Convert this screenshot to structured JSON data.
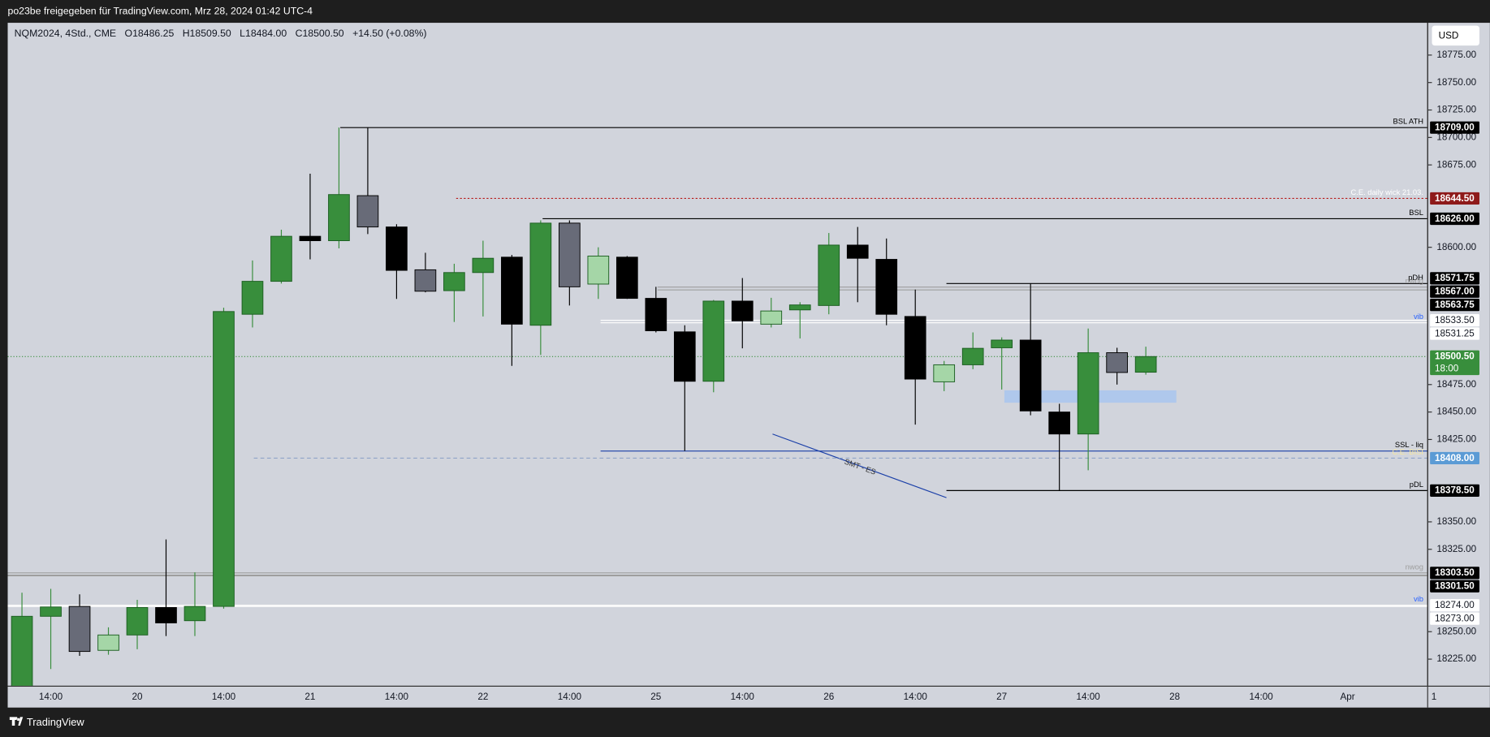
{
  "header": {
    "share_text": "po23be freigegeben für TradingView.com, Mrz 28, 2024 01:42 UTC-4",
    "currency": "USD",
    "brand": "TradingView"
  },
  "chart_data": {
    "type": "candlestick",
    "symbol": "NQM2024, 4Std., CME",
    "ohlc_labels": [
      "O18486.25",
      "H18509.50",
      "L18484.00",
      "C18500.50"
    ],
    "change": "+14.50 (+0.08%)",
    "open": [
      18200,
      18264,
      18273,
      18233,
      18247,
      18272,
      18260,
      18273,
      18539,
      18569,
      18610,
      18606,
      18647,
      18618.5,
      18579.5,
      18560.5,
      18577,
      18591,
      18529,
      18622,
      18566.5,
      18591,
      18553.5,
      18523,
      18478,
      18551,
      18530,
      18543,
      18547,
      18602,
      18589,
      18537,
      18477.5,
      18493,
      18508.5,
      18515.5,
      18450,
      18430,
      18504,
      18486.25
    ],
    "high": [
      18285.5,
      18289,
      18284,
      18254,
      18279,
      18334,
      18304,
      18545,
      18588,
      18616,
      18667,
      18709,
      18709,
      18621,
      18595,
      18585,
      18606,
      18593,
      18624.5,
      18624.5,
      18600,
      18592,
      18564,
      18529,
      18552,
      18572,
      18554,
      18550,
      18613,
      18618.5,
      18608,
      18561.5,
      18496.5,
      18522.5,
      18518,
      18567,
      18457.5,
      18526,
      18508.5,
      18509.5
    ],
    "low": [
      18195,
      18216,
      18228,
      18229,
      18234,
      18246,
      18246,
      18271,
      18527,
      18567,
      18589,
      18599,
      18612,
      18553,
      18559,
      18532,
      18537,
      18492,
      18502,
      18547,
      18553,
      18553,
      18522.5,
      18414.5,
      18468,
      18508,
      18527,
      18517,
      18539,
      18550,
      18529,
      18438.5,
      18469,
      18489,
      18470.5,
      18447,
      18378.5,
      18397,
      18475,
      18484
    ],
    "close": [
      18264,
      18272.5,
      18232,
      18247,
      18272,
      18258,
      18273,
      18541.5,
      18569,
      18610,
      18606,
      18648,
      18618.5,
      18579,
      18560,
      18577,
      18590,
      18530,
      18622,
      18564,
      18592,
      18553.5,
      18524,
      18478,
      18551,
      18533,
      18542,
      18547.5,
      18602,
      18590,
      18539,
      18480,
      18493,
      18508,
      18515.5,
      18451,
      18430,
      18504,
      18486,
      18500.5
    ],
    "colors": [
      "#388e3c",
      "#388e3c",
      "#686b78",
      "#a5d6a7",
      "#388e3c",
      "#000000",
      "#388e3c",
      "#388e3c",
      "#388e3c",
      "#388e3c",
      "#000000",
      "#388e3c",
      "#686b78",
      "#000000",
      "#686b78",
      "#388e3c",
      "#388e3c",
      "#000000",
      "#388e3c",
      "#686b78",
      "#a5d6a7",
      "#000000",
      "#000000",
      "#000000",
      "#388e3c",
      "#000000",
      "#a5d6a7",
      "#388e3c",
      "#388e3c",
      "#000000",
      "#000000",
      "#000000",
      "#a5d6a7",
      "#388e3c",
      "#388e3c",
      "#000000",
      "#000000",
      "#388e3c",
      "#686b78",
      "#388e3c"
    ],
    "ylim": [
      18200.8,
      18804.4
    ],
    "yticks": [
      {
        "value": 18775,
        "label": "18775.00"
      },
      {
        "value": 18750,
        "label": "18750.00"
      },
      {
        "value": 18725,
        "label": "18725.00"
      },
      {
        "value": 18700,
        "label": "18700.00"
      },
      {
        "value": 18675,
        "label": "18675.00"
      },
      {
        "value": 18600,
        "label": "18600.00"
      },
      {
        "value": 18475,
        "label": "18475.00"
      },
      {
        "value": 18450,
        "label": "18450.00"
      },
      {
        "value": 18425,
        "label": "18425.00"
      },
      {
        "value": 18350,
        "label": "18350.00"
      },
      {
        "value": 18325,
        "label": "18325.00"
      },
      {
        "value": 18250,
        "label": "18250.00"
      },
      {
        "value": 18225,
        "label": "18225.00"
      }
    ],
    "xticks": [
      "14:00",
      "20",
      "14:00",
      "21",
      "14:00",
      "22",
      "14:00",
      "25",
      "14:00",
      "26",
      "14:00",
      "27",
      "14:00",
      "28",
      "14:00",
      "Apr",
      "1"
    ],
    "levels": [
      {
        "value": 18709,
        "label": "18709.00",
        "text": "BSL ATH",
        "color": "#000000",
        "box_color": "#000000",
        "text_color": "#000000"
      },
      {
        "value": 18644.5,
        "label": "18644.50",
        "text": "C.E. daily wick 21.03.",
        "color": "#b71c1c",
        "box_color": "#8e1a1a",
        "text_color": "#ffffff"
      },
      {
        "value": 18626,
        "label": "18626.00",
        "text": "BSL",
        "color": "#000000",
        "box_color": "#000000",
        "text_color": "#000000"
      },
      {
        "value": 18571.75,
        "label": "18571.75",
        "box_color": "#000000"
      },
      {
        "value": 18567,
        "label": "18567.00",
        "text": "pDH",
        "color": "#000000",
        "box_color": "#000000",
        "text_color": "#000000"
      },
      {
        "value": 18563.75,
        "label": "18563.75",
        "text": "nwog",
        "color": "#9e9e9e",
        "box_color": "#000000",
        "text_color": "#9e9e9e"
      },
      {
        "value": 18533.5,
        "label": "18533.50",
        "color": "#ffffff",
        "box_color": "#ffffff"
      },
      {
        "value": 18531.25,
        "label": "18531.25",
        "text": "vib",
        "color": "#ffffff",
        "box_color": "#ffffff",
        "text_color": "#2962ff"
      },
      {
        "value": 18500.5,
        "label": "18500.50",
        "sub": "18:00",
        "color": "#388e3c",
        "box_color": "#388e3c"
      },
      {
        "value": 18414.5,
        "text": "SSL - liq",
        "color": "#1a3fa8",
        "text_color": "#000000"
      },
      {
        "value": 18408,
        "label": "18408.00",
        "text": "C.E. BISI",
        "color": "#90a4c8",
        "box_color": "#5b9bd5",
        "text_color": "#f5e6a0"
      },
      {
        "value": 18378.5,
        "label": "18378.50",
        "text": "pDL",
        "color": "#000000",
        "box_color": "#000000",
        "text_color": "#000000"
      },
      {
        "value": 18303.5,
        "label": "18303.50",
        "text": "nwog",
        "color": "#9e9e9e",
        "box_color": "#000000",
        "text_color": "#9e9e9e"
      },
      {
        "value": 18301.5,
        "label": "18301.50",
        "color": "#9e9e9e",
        "box_color": "#000000"
      },
      {
        "value": 18274,
        "label": "18274.00",
        "text": "vib",
        "color": "#ffffff",
        "box_color": "#ffffff",
        "text_color": "#2962ff"
      },
      {
        "value": 18273,
        "label": "18273.00",
        "color": "#ffffff",
        "box_color": "#ffffff"
      }
    ],
    "smt_label": "SMT - ES"
  }
}
